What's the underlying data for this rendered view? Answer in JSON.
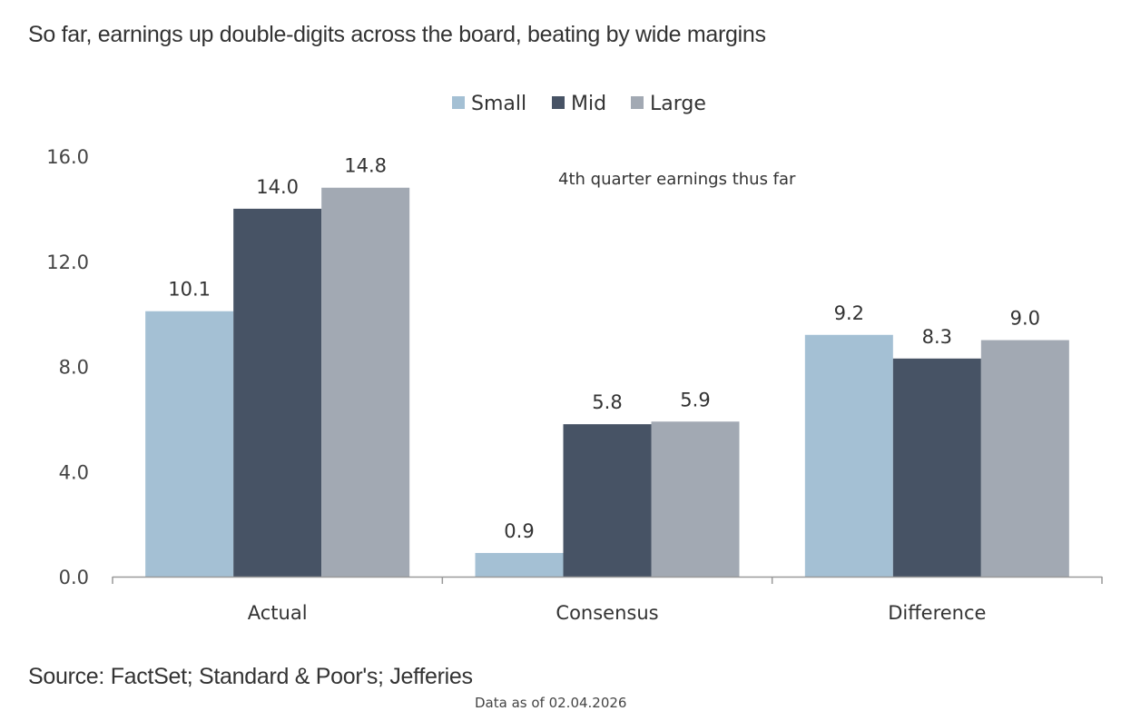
{
  "title": "So far, earnings up double-digits across the board, beating by wide margins",
  "source": "Source: FactSet; Standard & Poor's; Jefferies",
  "data_as_of": "Data as of 02.04.2026",
  "chart_data": {
    "type": "bar",
    "title": "So far, earnings up double-digits across the board, beating by wide margins",
    "annotation": "4th quarter earnings thus far",
    "categories": [
      "Actual",
      "Consensus",
      "Difference"
    ],
    "series": [
      {
        "name": "Small",
        "color": "#a4c0d4",
        "values": [
          10.1,
          0.9,
          9.2
        ],
        "labels": [
          "10.1",
          "0.9",
          "9.2"
        ]
      },
      {
        "name": "Mid",
        "color": "#475365",
        "values": [
          14.0,
          5.8,
          8.3
        ],
        "labels": [
          "14.0",
          "5.8",
          "8.3"
        ]
      },
      {
        "name": "Large",
        "color": "#a2a9b3",
        "values": [
          14.8,
          5.9,
          9.0
        ],
        "labels": [
          "14.8",
          "5.9",
          "9.0"
        ]
      }
    ],
    "ylim": [
      0,
      16
    ],
    "yticks": [
      0,
      4,
      8,
      12,
      16
    ],
    "ytick_labels": [
      "0.0",
      "4.0",
      "8.0",
      "12.0",
      "16.0"
    ],
    "xlabel": "",
    "ylabel": "",
    "grid": false,
    "legend_position": "top-center",
    "axis_color": "#999999"
  }
}
